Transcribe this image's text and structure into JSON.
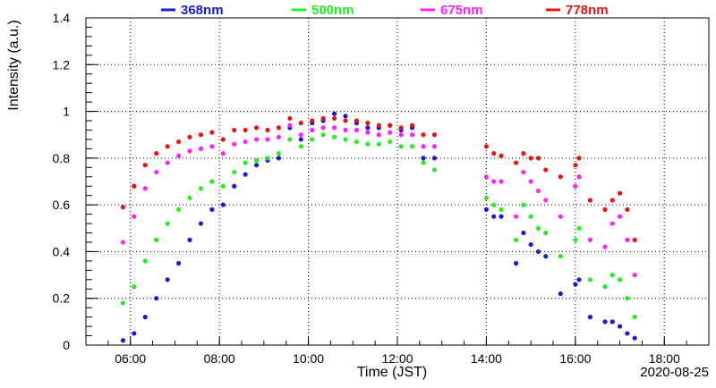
{
  "chart_data": {
    "type": "scatter",
    "xlabel": "Time (JST)",
    "ylabel": "Intensity (a.u.)",
    "date": "2020-08-25",
    "xlim": [
      "05:00",
      "19:00"
    ],
    "ylim": [
      0,
      1.4
    ],
    "x_ticks": [
      "06:00",
      "08:00",
      "10:00",
      "12:00",
      "14:00",
      "16:00",
      "18:00"
    ],
    "y_ticks": [
      "0",
      "0.2",
      "0.4",
      "0.6",
      "0.8",
      "1",
      "1.2",
      "1.4"
    ],
    "grid": true,
    "legend_position": "top",
    "series": [
      {
        "name": "368nm",
        "color": "#1a1ad6",
        "x": [
          "05:50",
          "06:05",
          "06:20",
          "06:35",
          "06:50",
          "07:05",
          "07:20",
          "07:35",
          "07:50",
          "08:05",
          "08:20",
          "08:35",
          "08:50",
          "09:05",
          "09:20",
          "09:35",
          "09:50",
          "10:05",
          "10:20",
          "10:35",
          "10:50",
          "11:05",
          "11:20",
          "11:35",
          "11:50",
          "12:05",
          "12:20",
          "12:35",
          "12:50",
          "14:00",
          "14:10",
          "14:20",
          "14:40",
          "14:50",
          "15:00",
          "15:10",
          "15:20",
          "15:40",
          "16:00",
          "16:05",
          "16:20",
          "16:40",
          "16:50",
          "17:00",
          "17:10",
          "17:20"
        ],
        "values": [
          0.02,
          0.05,
          0.12,
          0.2,
          0.28,
          0.35,
          0.45,
          0.52,
          0.58,
          0.6,
          0.68,
          0.73,
          0.77,
          0.79,
          0.8,
          0.93,
          0.88,
          0.95,
          0.96,
          0.99,
          0.98,
          0.95,
          0.93,
          0.93,
          0.94,
          0.92,
          0.93,
          0.8,
          0.8,
          0.58,
          0.55,
          0.55,
          0.35,
          0.48,
          0.43,
          0.4,
          0.38,
          0.22,
          0.26,
          0.28,
          0.12,
          0.1,
          0.1,
          0.08,
          0.05,
          0.03
        ]
      },
      {
        "name": "500nm",
        "color": "#22ee22",
        "x": [
          "05:50",
          "06:05",
          "06:20",
          "06:35",
          "06:50",
          "07:05",
          "07:20",
          "07:35",
          "07:50",
          "08:05",
          "08:20",
          "08:35",
          "08:50",
          "09:05",
          "09:20",
          "09:35",
          "09:50",
          "10:05",
          "10:20",
          "10:35",
          "10:50",
          "11:05",
          "11:20",
          "11:35",
          "11:50",
          "12:05",
          "12:20",
          "12:35",
          "12:50",
          "14:00",
          "14:10",
          "14:20",
          "14:40",
          "14:50",
          "15:00",
          "15:10",
          "15:20",
          "15:40",
          "16:00",
          "16:05",
          "16:20",
          "16:40",
          "16:50",
          "17:00",
          "17:10",
          "17:20"
        ],
        "values": [
          0.18,
          0.25,
          0.36,
          0.45,
          0.52,
          0.58,
          0.63,
          0.67,
          0.7,
          0.68,
          0.74,
          0.78,
          0.79,
          0.8,
          0.82,
          0.88,
          0.85,
          0.88,
          0.9,
          0.89,
          0.88,
          0.87,
          0.86,
          0.86,
          0.87,
          0.85,
          0.85,
          0.78,
          0.75,
          0.63,
          0.6,
          0.58,
          0.45,
          0.6,
          0.55,
          0.5,
          0.48,
          0.38,
          0.45,
          0.5,
          0.28,
          0.25,
          0.3,
          0.28,
          0.2,
          0.12
        ]
      },
      {
        "name": "675nm",
        "color": "#ff22ff",
        "x": [
          "05:50",
          "06:05",
          "06:20",
          "06:35",
          "06:50",
          "07:05",
          "07:20",
          "07:35",
          "07:50",
          "08:05",
          "08:20",
          "08:35",
          "08:50",
          "09:05",
          "09:20",
          "09:35",
          "09:50",
          "10:05",
          "10:20",
          "10:35",
          "10:50",
          "11:05",
          "11:20",
          "11:35",
          "11:50",
          "12:05",
          "12:20",
          "12:35",
          "12:50",
          "14:00",
          "14:10",
          "14:20",
          "14:40",
          "14:50",
          "15:00",
          "15:10",
          "15:20",
          "15:40",
          "16:00",
          "16:05",
          "16:20",
          "16:40",
          "16:50",
          "17:00",
          "17:10",
          "17:20"
        ],
        "values": [
          0.44,
          0.55,
          0.67,
          0.74,
          0.78,
          0.81,
          0.83,
          0.84,
          0.85,
          0.82,
          0.86,
          0.87,
          0.88,
          0.88,
          0.89,
          0.94,
          0.9,
          0.92,
          0.93,
          0.93,
          0.92,
          0.92,
          0.91,
          0.9,
          0.91,
          0.9,
          0.9,
          0.85,
          0.85,
          0.72,
          0.7,
          0.7,
          0.55,
          0.74,
          0.7,
          0.66,
          0.62,
          0.55,
          0.68,
          0.72,
          0.45,
          0.42,
          0.52,
          0.55,
          0.45,
          0.3
        ]
      },
      {
        "name": "778nm",
        "color": "#ee1111",
        "x": [
          "05:50",
          "06:05",
          "06:20",
          "06:35",
          "06:50",
          "07:05",
          "07:20",
          "07:35",
          "07:50",
          "08:05",
          "08:20",
          "08:35",
          "08:50",
          "09:05",
          "09:20",
          "09:35",
          "09:50",
          "10:05",
          "10:20",
          "10:35",
          "10:50",
          "11:05",
          "11:20",
          "11:35",
          "11:50",
          "12:05",
          "12:20",
          "12:35",
          "12:50",
          "14:00",
          "14:10",
          "14:20",
          "14:40",
          "14:50",
          "15:00",
          "15:10",
          "15:20",
          "15:40",
          "16:00",
          "16:05",
          "16:20",
          "16:40",
          "16:50",
          "17:00",
          "17:10",
          "17:20"
        ],
        "values": [
          0.59,
          0.68,
          0.77,
          0.82,
          0.85,
          0.87,
          0.89,
          0.9,
          0.91,
          0.88,
          0.92,
          0.92,
          0.93,
          0.92,
          0.93,
          0.97,
          0.95,
          0.96,
          0.97,
          0.97,
          0.96,
          0.96,
          0.95,
          0.94,
          0.94,
          0.93,
          0.94,
          0.9,
          0.9,
          0.85,
          0.82,
          0.81,
          0.78,
          0.82,
          0.8,
          0.8,
          0.75,
          0.72,
          0.77,
          0.8,
          0.62,
          0.58,
          0.62,
          0.65,
          0.58,
          0.45
        ]
      }
    ]
  }
}
